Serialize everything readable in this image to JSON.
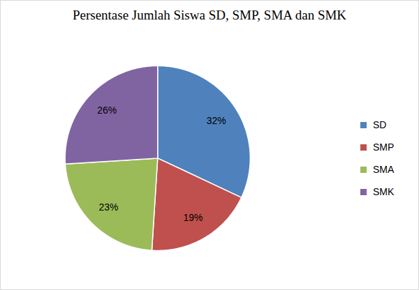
{
  "chart_data": {
    "type": "pie",
    "title": "Persentase Jumlah Siswa SD, SMP, SMA dan SMK",
    "categories": [
      "SD",
      "SMP",
      "SMA",
      "SMK"
    ],
    "values": [
      32,
      19,
      23,
      26
    ],
    "value_labels": [
      "32%",
      "19%",
      "23%",
      "26%"
    ],
    "colors": [
      "#4F81BD",
      "#C0504D",
      "#9BBB59",
      "#8064A2"
    ],
    "data_labels": true,
    "legend": "right"
  }
}
